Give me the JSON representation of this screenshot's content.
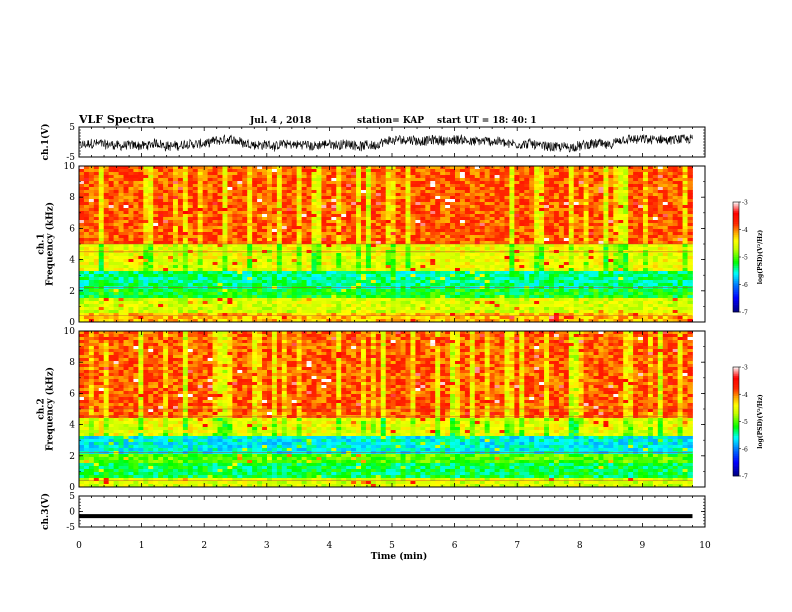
{
  "header": {
    "title": "VLF Spectra",
    "date": "Jul. 4 , 2018",
    "station": "station= KAP",
    "start_time": "start UT =  18: 40: 1"
  },
  "chart_data": [
    {
      "type": "line",
      "panel": "ch1-waveform",
      "ylabel": "ch.1(V)",
      "ylim": [
        -5,
        5
      ],
      "yticks": [
        "5",
        "-5"
      ],
      "xlim": [
        0,
        10
      ],
      "description_values": "waveform oscillating roughly between -4 and 2 V for 0–9.8 min"
    },
    {
      "type": "heatmap",
      "panel": "ch1-spectrogram",
      "ylabel": "ch.1\nFrequency (kHz)",
      "ylim": [
        0,
        10
      ],
      "yticks": [
        "0",
        "2",
        "4",
        "6",
        "8",
        "10"
      ],
      "xlim": [
        0,
        10
      ],
      "colorbar": {
        "label": "log(PSD)(V²/Hz)",
        "range": [
          -7,
          -3
        ],
        "ticks": [
          "-3",
          "-4",
          "-5",
          "-6",
          "-7"
        ]
      },
      "bands": [
        {
          "f": [
            0,
            0.5
          ],
          "level": -4.2
        },
        {
          "f": [
            0.5,
            1.5
          ],
          "level": -4.6
        },
        {
          "f": [
            1.5,
            2.2
          ],
          "level": -5.2
        },
        {
          "f": [
            2.2,
            3.3
          ],
          "level": -5.4
        },
        {
          "f": [
            3.3,
            5.0
          ],
          "level": -4.5
        },
        {
          "f": [
            5.0,
            10.0
          ],
          "level": -3.9
        }
      ]
    },
    {
      "type": "heatmap",
      "panel": "ch2-spectrogram",
      "ylabel": "ch.2\nFrequency (kHz)",
      "ylim": [
        0,
        10
      ],
      "yticks": [
        "0",
        "2",
        "4",
        "6",
        "8",
        "10"
      ],
      "xlim": [
        0,
        10
      ],
      "colorbar": {
        "label": "log(PSD)(V²/Hz)",
        "range": [
          -7,
          -3
        ],
        "ticks": [
          "-3",
          "-4",
          "-5",
          "-6",
          "-7"
        ]
      },
      "bands": [
        {
          "f": [
            0,
            0.5
          ],
          "level": -4.6
        },
        {
          "f": [
            0.5,
            1.5
          ],
          "level": -5.3
        },
        {
          "f": [
            1.5,
            2.2
          ],
          "level": -5.0
        },
        {
          "f": [
            2.2,
            3.3
          ],
          "level": -5.6
        },
        {
          "f": [
            3.3,
            4.5
          ],
          "level": -4.5
        },
        {
          "f": [
            4.5,
            10.0
          ],
          "level": -3.9
        }
      ]
    },
    {
      "type": "line",
      "panel": "ch3-waveform",
      "ylabel": "ch.3(V)",
      "ylim": [
        -5,
        5
      ],
      "yticks": [
        "5",
        "0",
        "-5"
      ],
      "xlim": [
        0,
        10
      ],
      "description_values": "flat thick line near -1.5 V"
    }
  ],
  "xaxis": {
    "label": "Time (min)",
    "ticks": [
      "0",
      "1",
      "2",
      "3",
      "4",
      "5",
      "6",
      "7",
      "8",
      "9",
      "10"
    ],
    "data_end": 9.8
  },
  "colors": {
    "axis": "#000000",
    "waveform": "#000000",
    "colormap": [
      "#00007f",
      "#0000ff",
      "#00ffff",
      "#00ff00",
      "#ffff00",
      "#ff8000",
      "#ff0000",
      "#ffffff"
    ]
  }
}
